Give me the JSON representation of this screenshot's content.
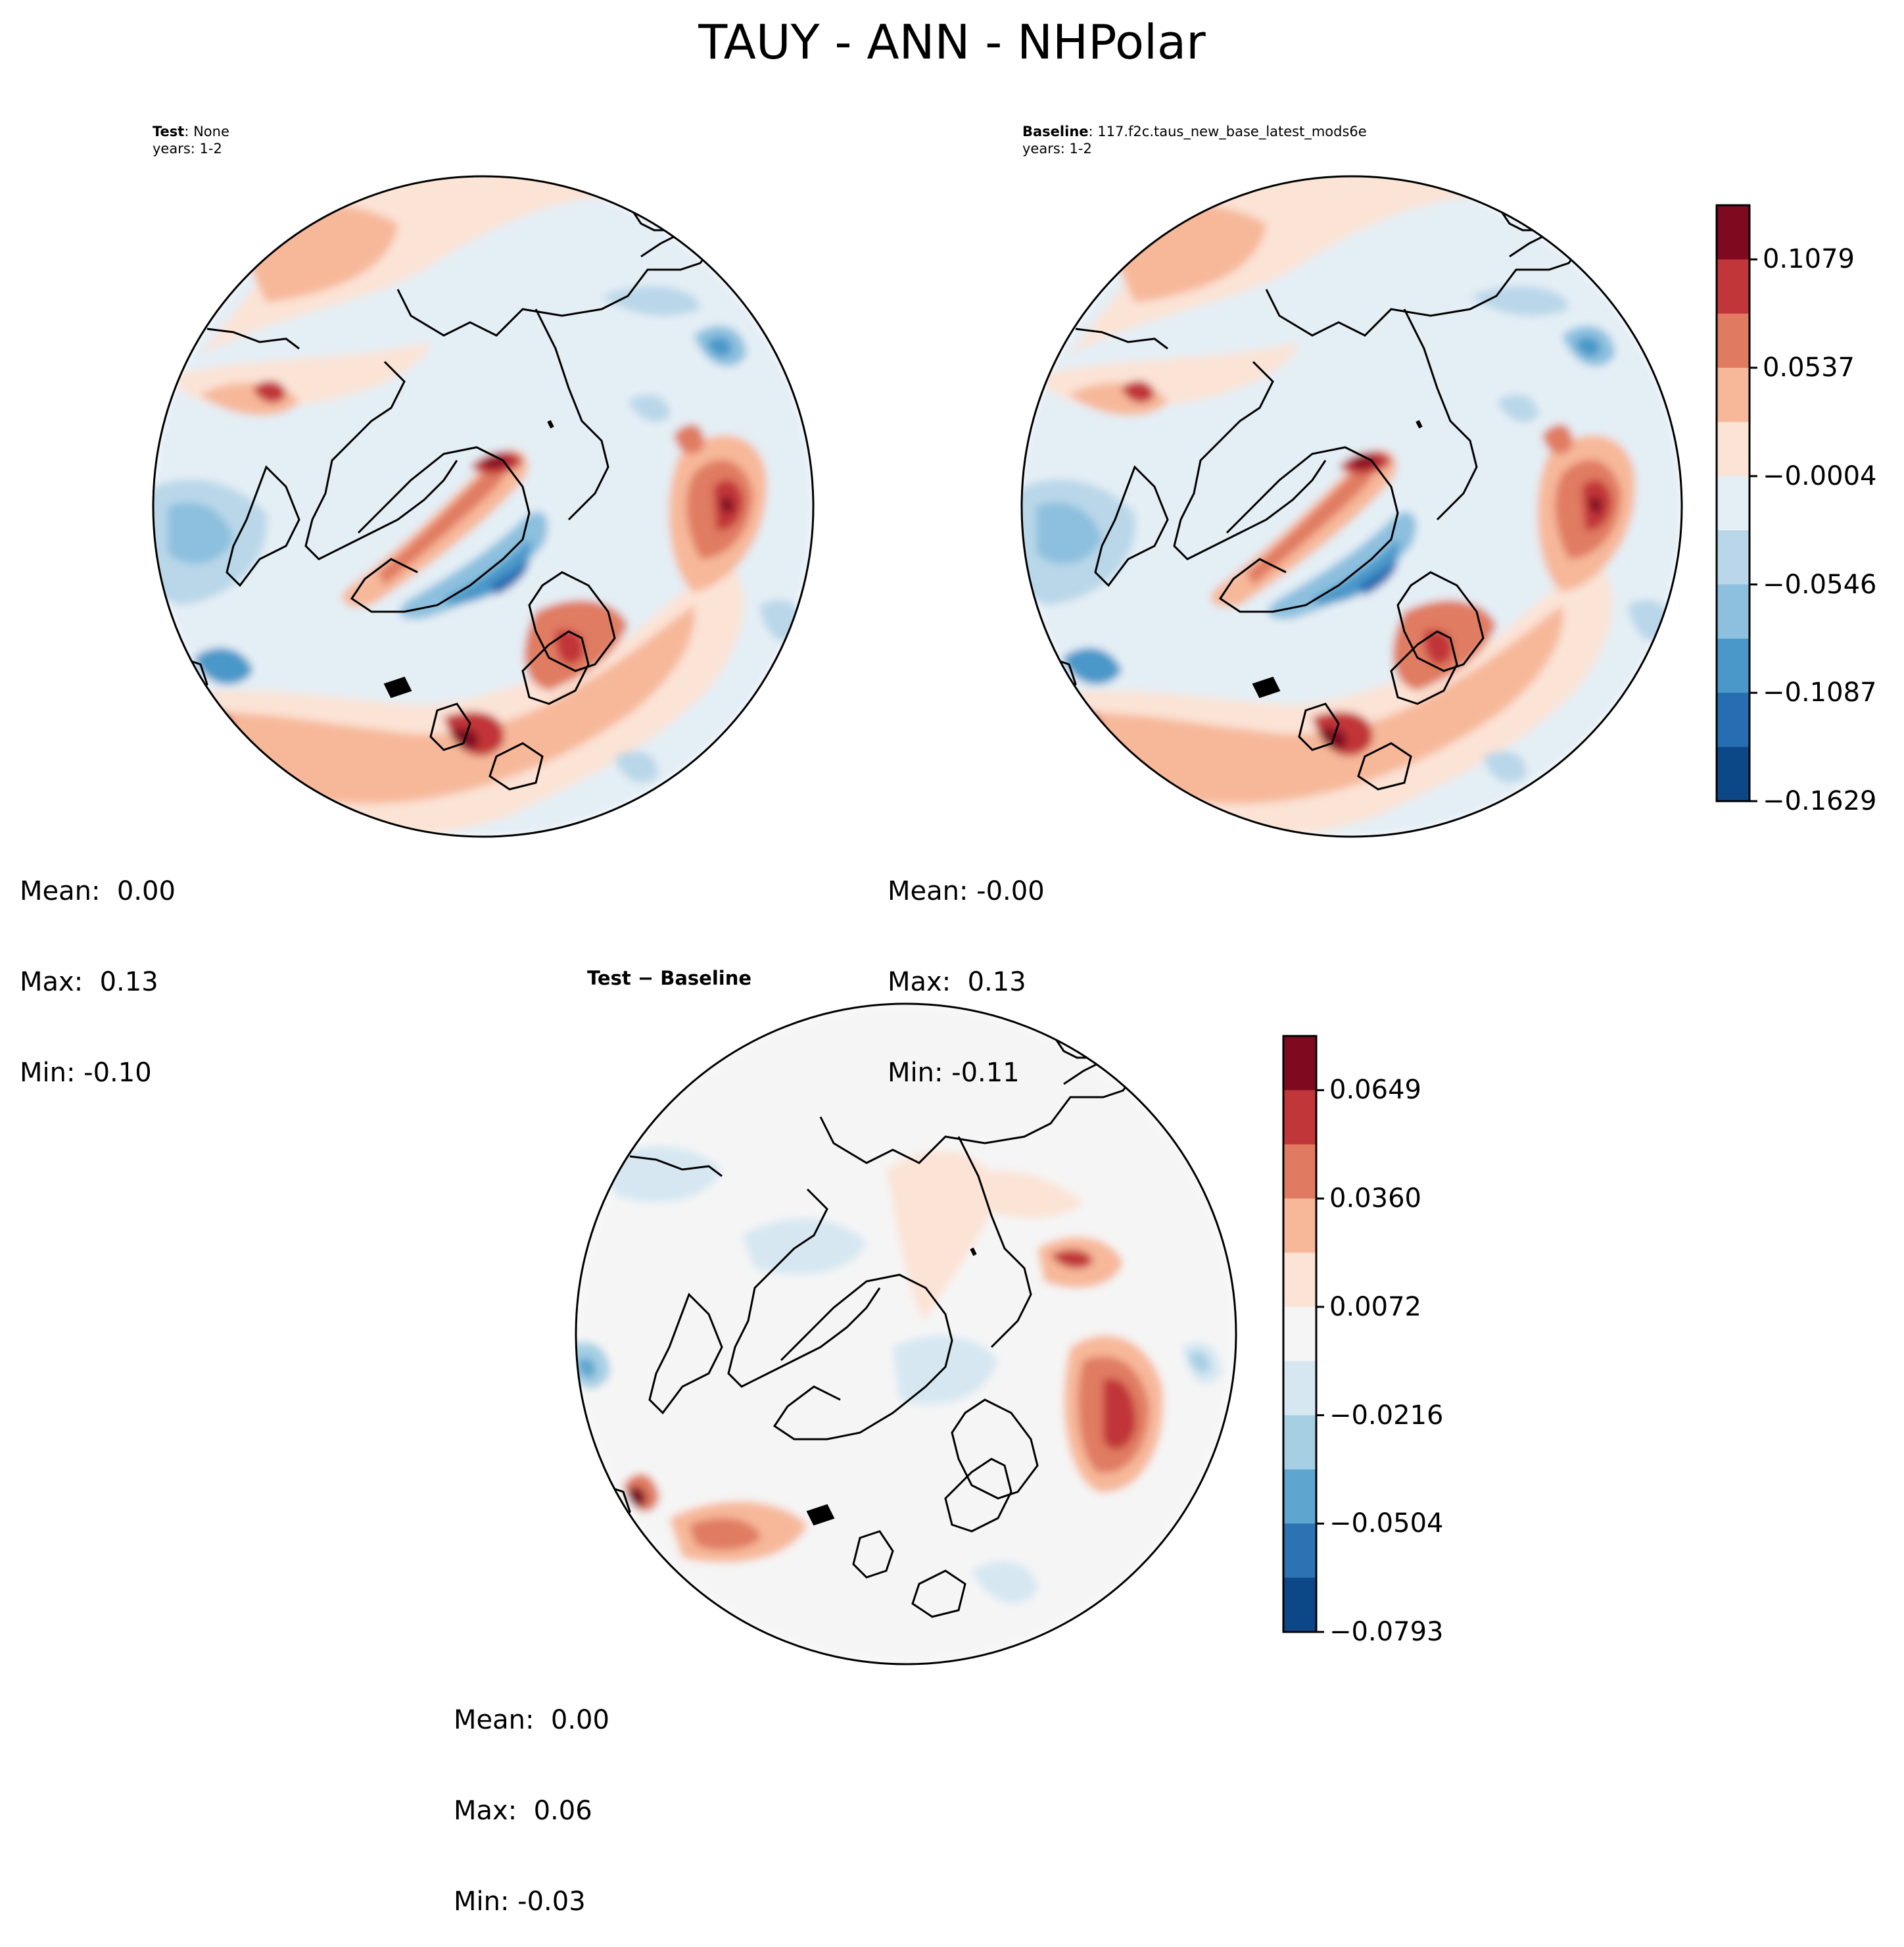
{
  "figure": {
    "title": "TAUY - ANN - NHPolar"
  },
  "test_panel": {
    "label_bold": "Test",
    "label_rest": ": None",
    "years": "years: 1-2",
    "stats": {
      "mean": "Mean:  0.00",
      "max": "Max:  0.13",
      "min": "Min: -0.10"
    }
  },
  "baseline_panel": {
    "label_bold": "Baseline",
    "label_rest": ": 117.f2c.taus_new_base_latest_mods6e",
    "years": "years: 1-2",
    "stats": {
      "mean": "Mean: -0.00",
      "max": "Max:  0.13",
      "min": "Min: -0.11"
    }
  },
  "diff_panel": {
    "title": "Test − Baseline",
    "stats": {
      "mean": "Mean:  0.00",
      "max": "Max:  0.06",
      "min": "Min: -0.03"
    }
  },
  "colorbars": {
    "main": {
      "ticks": [
        "0.1079",
        "0.0537",
        "−0.0004",
        "−0.0546",
        "−0.1087",
        "−0.1629"
      ],
      "colors_top_to_bottom": [
        "#7f0a20",
        "#c13639",
        "#e07b62",
        "#f7b89a",
        "#fbe3d6",
        "#e4eef5",
        "#b9d7e9",
        "#8cc0de",
        "#4a98c9",
        "#276db1",
        "#0c4887"
      ]
    },
    "diff": {
      "ticks": [
        "0.0649",
        "0.0360",
        "0.0072",
        "−0.0216",
        "−0.0504",
        "−0.0793"
      ],
      "colors_top_to_bottom": [
        "#7f0a20",
        "#c13639",
        "#e07b62",
        "#f7b89a",
        "#fbe3d6",
        "#f5f5f5",
        "#d6e7f2",
        "#a6cfe4",
        "#5ea5cf",
        "#2c73b3",
        "#0c4887"
      ]
    }
  },
  "chart_data": [
    {
      "type": "heatmap",
      "title": "Test: None",
      "subtitle": "years: 1-2",
      "projection": "north polar stereographic",
      "variable": "TAUY",
      "season": "ANN",
      "color_levels": [
        -0.1629,
        -0.1087,
        -0.0546,
        -0.0004,
        0.0537,
        0.1079
      ],
      "mean": 0.0,
      "max": 0.13,
      "min": -0.1
    },
    {
      "type": "heatmap",
      "title": "Baseline: 117.f2c.taus_new_base_latest_mods6e",
      "subtitle": "years: 1-2",
      "projection": "north polar stereographic",
      "variable": "TAUY",
      "season": "ANN",
      "color_levels": [
        -0.1629,
        -0.1087,
        -0.0546,
        -0.0004,
        0.0537,
        0.1079
      ],
      "mean": -0.0,
      "max": 0.13,
      "min": -0.11
    },
    {
      "type": "heatmap",
      "title": "Test − Baseline",
      "projection": "north polar stereographic",
      "color_levels": [
        -0.0793,
        -0.0504,
        -0.0216,
        0.0072,
        0.036,
        0.0649
      ],
      "mean": 0.0,
      "max": 0.06,
      "min": -0.03
    }
  ]
}
